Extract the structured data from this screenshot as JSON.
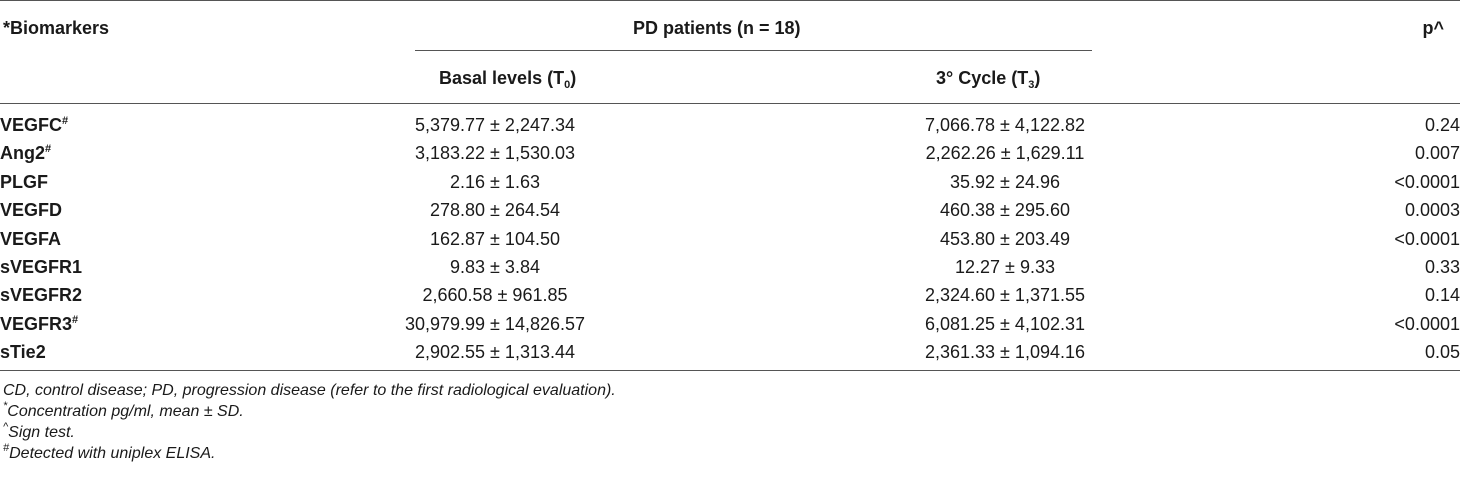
{
  "table": {
    "header": {
      "biomarkers": "*Biomarkers",
      "group": "PD patients (n = 18)",
      "p": "p^",
      "t0_label": "Basal levels (T",
      "t0_sub": "0",
      "t0_close": ")",
      "t3_label": "3° Cycle (T",
      "t3_sub": "3",
      "t3_close": ")"
    },
    "rows": [
      {
        "name": "VEGFC",
        "mark": "#",
        "t0": "5,379.77 ± 2,247.34",
        "t3": "7,066.78 ± 4,122.82",
        "p": "0.24"
      },
      {
        "name": "Ang2",
        "mark": "#",
        "t0": "3,183.22 ± 1,530.03",
        "t3": "2,262.26 ± 1,629.11",
        "p": "0.007"
      },
      {
        "name": "PLGF",
        "mark": "",
        "t0": "2.16 ± 1.63",
        "t3": "35.92 ± 24.96",
        "p": "<0.0001"
      },
      {
        "name": "VEGFD",
        "mark": "",
        "t0": "278.80 ± 264.54",
        "t3": "460.38 ± 295.60",
        "p": "0.0003"
      },
      {
        "name": "VEGFA",
        "mark": "",
        "t0": "162.87 ± 104.50",
        "t3": "453.80 ± 203.49",
        "p": "<0.0001"
      },
      {
        "name": "sVEGFR1",
        "mark": "",
        "t0": "9.83 ± 3.84",
        "t3": "12.27 ± 9.33",
        "p": "0.33"
      },
      {
        "name": "sVEGFR2",
        "mark": "",
        "t0": "2,660.58 ± 961.85",
        "t3": "2,324.60 ± 1,371.55",
        "p": "0.14"
      },
      {
        "name": "VEGFR3",
        "mark": "#",
        "t0": "30,979.99 ± 14,826.57",
        "t3": "6,081.25 ± 4,102.31",
        "p": "<0.0001"
      },
      {
        "name": "sTie2",
        "mark": "",
        "t0": "2,902.55 ± 1,313.44",
        "t3": "2,361.33 ± 1,094.16",
        "p": "0.05"
      }
    ]
  },
  "notes": {
    "abbrev": "CD, control disease; PD, progression disease (refer to the first radiological evaluation).",
    "conc_mark": "*",
    "conc": "Concentration pg/ml, mean ± SD.",
    "sign_mark": "^",
    "sign": "Sign test.",
    "elisa_mark": "#",
    "elisa": "Detected with uniplex ELISA."
  }
}
